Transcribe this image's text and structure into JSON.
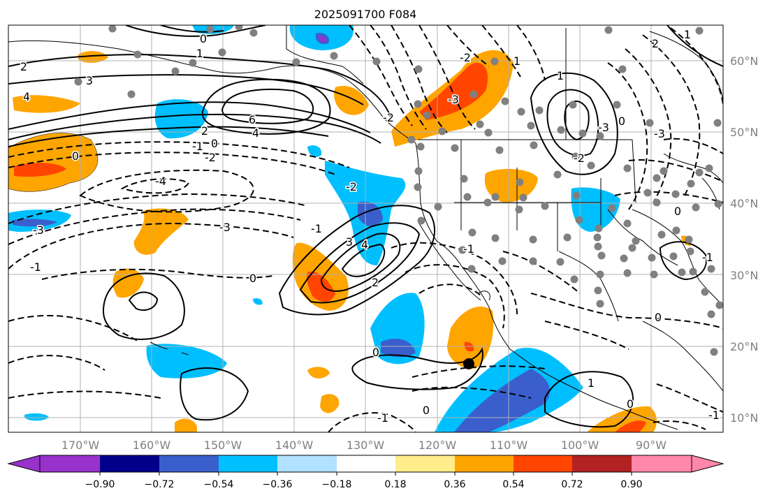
{
  "title": "2025091700 F084",
  "map": {
    "lat_labels": [
      "60°N",
      "50°N",
      "40°N",
      "30°N",
      "20°N",
      "10°N"
    ],
    "lon_labels": [
      "170°W",
      "160°W",
      "150°W",
      "140°W",
      "130°W",
      "120°W",
      "110°W",
      "100°W",
      "90°W"
    ],
    "contour_labels": [
      "2",
      "1",
      "0",
      "3",
      "4",
      "6",
      "4",
      "2",
      "0",
      "-1",
      "-2",
      "-3",
      "-4",
      "-3",
      "-1",
      "0",
      "0",
      "3",
      "4",
      "2",
      "-2",
      "-1",
      "-2",
      "-3",
      "-2",
      "-3",
      "-2",
      "1",
      "0",
      "-1",
      "0",
      "-1",
      "0",
      "1",
      "0",
      "1",
      "-1",
      "0",
      "2",
      "0",
      "-1",
      "-3",
      "1"
    ],
    "colors": {
      "land": "#000000",
      "positive_fill": "#ffa500",
      "negative_fill": "#00bfff",
      "station_dot": "#808080",
      "grid": "#b0b0b0",
      "axis_labels": "#808080"
    }
  },
  "colorbar": {
    "tick_labels": [
      "−0.90",
      "−0.72",
      "−0.54",
      "−0.36",
      "−0.18",
      "0.18",
      "0.36",
      "0.54",
      "0.72",
      "0.90"
    ],
    "colors": [
      "#9932cc",
      "#00008b",
      "#3a5fcd",
      "#00bfff",
      "#b0e2ff",
      "#ffffff",
      "#ffec8b",
      "#ffa500",
      "#ff4500",
      "#b22222",
      "#ff88aa"
    ]
  }
}
